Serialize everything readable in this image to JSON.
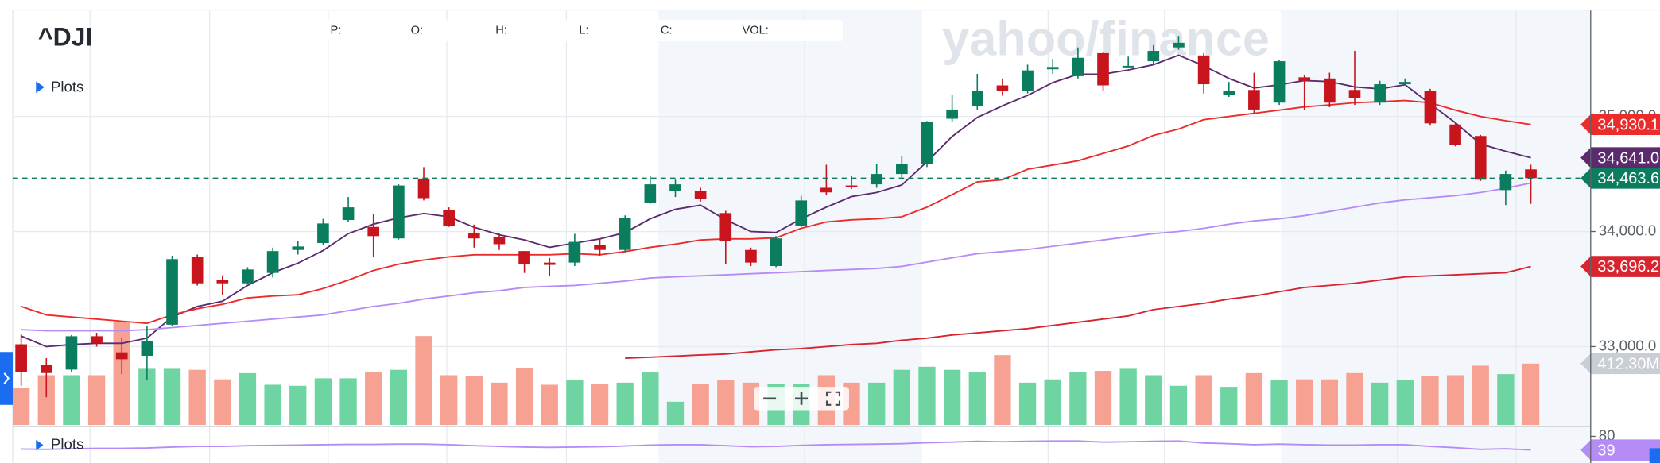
{
  "header": {
    "symbol": "^DJI",
    "plots_label": "Plots",
    "fields": [
      "P:",
      "O:",
      "H:",
      "L:",
      "C:",
      "VOL:"
    ],
    "watermark": "yahoo/finance"
  },
  "chart_data": {
    "type": "candlestick",
    "open": [
      33020,
      32840,
      32800,
      33090,
      32950,
      32920,
      33190,
      33780,
      33580,
      33550,
      33640,
      33840,
      33900,
      34100,
      34040,
      33940,
      34460,
      34190,
      33990,
      33950,
      33830,
      33730,
      33730,
      33880,
      33840,
      34250,
      34350,
      34350,
      34160,
      33840,
      33700,
      34050,
      34380,
      34400,
      34410,
      34500,
      34590,
      34980,
      35090,
      35270,
      35220,
      35410,
      35350,
      35550,
      35430,
      35480,
      35600,
      35530,
      35190,
      35230,
      35120,
      35340,
      35330,
      35230,
      35120,
      35280,
      35220,
      34930,
      34830,
      34360,
      34540
    ],
    "high": [
      33110,
      32900,
      33100,
      33120,
      33080,
      33180,
      33790,
      33800,
      33620,
      33690,
      33860,
      33920,
      34110,
      34300,
      34150,
      34410,
      34560,
      34210,
      34060,
      33990,
      33830,
      33770,
      33980,
      33940,
      34140,
      34480,
      34450,
      34380,
      34180,
      33860,
      33960,
      34310,
      34580,
      34480,
      34590,
      34660,
      34960,
      35190,
      35370,
      35330,
      35450,
      35500,
      35600,
      35560,
      35520,
      35620,
      35700,
      35550,
      35300,
      35380,
      35490,
      35360,
      35380,
      35570,
      35310,
      35330,
      35240,
      34950,
      34840,
      34530,
      34580
    ],
    "low": [
      32660,
      32560,
      32780,
      33000,
      32760,
      32710,
      33180,
      33530,
      33450,
      33540,
      33600,
      33800,
      33880,
      34080,
      33780,
      33930,
      34270,
      34040,
      33860,
      33840,
      33640,
      33610,
      33700,
      33790,
      33820,
      34240,
      34300,
      34260,
      33720,
      33700,
      33690,
      34040,
      34320,
      34370,
      34380,
      34470,
      34560,
      34950,
      35060,
      35180,
      35200,
      35370,
      35330,
      35220,
      35420,
      35450,
      35580,
      35200,
      35170,
      35030,
      35100,
      35060,
      35080,
      35100,
      35100,
      35270,
      34920,
      34740,
      34440,
      34230,
      34240
    ],
    "close": [
      32780,
      32770,
      33090,
      33030,
      32890,
      33050,
      33760,
      33550,
      33550,
      33670,
      33830,
      33870,
      34070,
      34210,
      33960,
      34400,
      34290,
      34050,
      33940,
      33890,
      33720,
      33710,
      33910,
      33840,
      34120,
      34410,
      34410,
      34280,
      33920,
      33730,
      33940,
      34270,
      34340,
      34390,
      34500,
      34590,
      34950,
      35060,
      35220,
      35220,
      35400,
      35430,
      35510,
      35270,
      35440,
      35570,
      35640,
      35280,
      35220,
      35060,
      35480,
      35310,
      35120,
      35160,
      35280,
      35300,
      34940,
      34750,
      34450,
      34500,
      34463.6
    ],
    "up_color": "#0b7d5f",
    "down_color": "#c8141d",
    "ylim": [
      32310,
      35920
    ],
    "yticks": [
      {
        "value": 35000,
        "label": "35,000.0"
      },
      {
        "value": 34000,
        "label": "34,000.0"
      },
      {
        "value": 33000,
        "label": "33,000.0"
      }
    ],
    "grid": true,
    "last_price_label": "34,463.6",
    "volume": {
      "values": [
        249,
        334,
        334,
        334,
        690,
        377,
        377,
        370,
        306,
        348,
        270,
        263,
        313,
        313,
        356,
        370,
        597,
        334,
        327,
        284,
        384,
        270,
        299,
        277,
        284,
        356,
        156,
        277,
        299,
        284,
        277,
        277,
        334,
        284,
        284,
        370,
        391,
        370,
        356,
        469,
        284,
        306,
        356,
        363,
        377,
        334,
        263,
        334,
        256,
        348,
        299,
        306,
        306,
        348,
        284,
        299,
        327,
        334,
        398,
        341,
        412.3
      ],
      "ylim": [
        0,
        1200
      ],
      "last_label": "412.30M",
      "up_color": "#6dd4a2",
      "down_color": "#f7a193",
      "label_color": "#c9ced5"
    },
    "series": [
      {
        "color": "#5c2a6f",
        "last_label": "34,641.0",
        "values": [
          33092,
          33000,
          33018,
          33028,
          33028,
          33073,
          33257,
          33349,
          33394,
          33532,
          33642,
          33725,
          33835,
          33982,
          34064,
          34119,
          34156,
          34128,
          34037,
          33972,
          33927,
          33862,
          33899,
          33936,
          33991,
          34110,
          34193,
          34229,
          34101,
          34000,
          33991,
          34110,
          34211,
          34303,
          34339,
          34404,
          34606,
          34826,
          34991,
          35092,
          35183,
          35294,
          35367,
          35367,
          35404,
          35450,
          35532,
          35440,
          35330,
          35248,
          35275,
          35312,
          35303,
          35257,
          35239,
          35275,
          35110,
          34945,
          34761,
          34697,
          34641
        ]
      },
      {
        "color": "#ec2b2b",
        "last_label": "34,930.1",
        "values": [
          33349,
          33275,
          33257,
          33239,
          33220,
          33202,
          33275,
          33330,
          33367,
          33422,
          33440,
          33450,
          33505,
          33578,
          33661,
          33716,
          33752,
          33780,
          33798,
          33798,
          33798,
          33798,
          33807,
          33798,
          33826,
          33862,
          33890,
          33927,
          33936,
          33936,
          33945,
          34028,
          34083,
          34101,
          34110,
          34128,
          34211,
          34321,
          34431,
          34450,
          34541,
          34578,
          34615,
          34679,
          34743,
          34835,
          34890,
          34972,
          35000,
          35027,
          35055,
          35083,
          35101,
          35119,
          35128,
          35138,
          35119,
          35055,
          35000,
          34963,
          34930.1
        ]
      },
      {
        "color": "#b58cf5",
        "values": [
          33147,
          33138,
          33138,
          33138,
          33138,
          33147,
          33165,
          33184,
          33202,
          33220,
          33239,
          33257,
          33275,
          33312,
          33349,
          33376,
          33413,
          33440,
          33468,
          33486,
          33514,
          33523,
          33532,
          33550,
          33569,
          33596,
          33606,
          33615,
          33624,
          33633,
          33642,
          33651,
          33661,
          33670,
          33679,
          33697,
          33734,
          33771,
          33807,
          33826,
          33844,
          33872,
          33899,
          33927,
          33954,
          33982,
          34000,
          34028,
          34064,
          34092,
          34110,
          34138,
          34174,
          34211,
          34248,
          34275,
          34294,
          34312,
          34339,
          34376,
          34422
        ]
      },
      {
        "color": "#d8242f",
        "last_label": "33,696.2",
        "values": [
          null,
          null,
          null,
          null,
          null,
          null,
          null,
          null,
          null,
          null,
          null,
          null,
          null,
          null,
          null,
          null,
          null,
          null,
          null,
          null,
          null,
          null,
          null,
          null,
          32899,
          32908,
          32917,
          32927,
          32936,
          32954,
          32972,
          32982,
          33000,
          33018,
          33028,
          33055,
          33073,
          33101,
          33119,
          33138,
          33156,
          33184,
          33211,
          33239,
          33266,
          33321,
          33349,
          33376,
          33413,
          33440,
          33477,
          33514,
          33532,
          33550,
          33578,
          33605,
          33615,
          33624,
          33633,
          33642,
          33696.2
        ]
      }
    ],
    "indicator": {
      "plots_label": "Plots",
      "color": "#b58cf5",
      "ylim": [
        0,
        108
      ],
      "yticks": [
        80
      ],
      "last_label": "39",
      "values": [
        42,
        41,
        43,
        44,
        44,
        45,
        48,
        50,
        50,
        52,
        53,
        54,
        55,
        56,
        56,
        57,
        57,
        55,
        52,
        50,
        48,
        47,
        48,
        49,
        51,
        54,
        55,
        55,
        52,
        49,
        50,
        53,
        55,
        56,
        57,
        58,
        61,
        63,
        65,
        64,
        65,
        66,
        66,
        63,
        64,
        65,
        66,
        60,
        58,
        55,
        57,
        55,
        54,
        54,
        55,
        55,
        50,
        46,
        41,
        43,
        39
      ]
    }
  }
}
